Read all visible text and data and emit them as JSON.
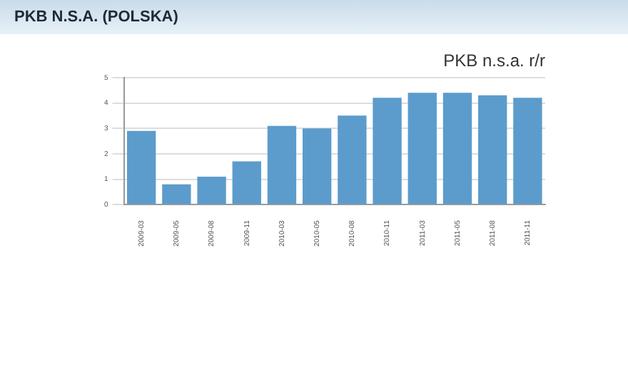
{
  "chart_data": {
    "type": "bar",
    "title": "PKB N.S.A. (POLSKA)",
    "subtitle": "PKB n.s.a. r/r",
    "categories": [
      "2009-03",
      "2009-05",
      "2009-08",
      "2009-11",
      "2010-03",
      "2010-05",
      "2010-08",
      "2010-11",
      "2011-03",
      "2011-05",
      "2011-08",
      "2011-11"
    ],
    "values": [
      2.9,
      0.8,
      1.1,
      1.7,
      3.1,
      3.0,
      3.5,
      4.2,
      4.4,
      4.4,
      4.3,
      4.2
    ],
    "color": "#5b9ccc",
    "ylim": [
      0,
      5
    ],
    "yticks": [
      0,
      1,
      2,
      3,
      4,
      5
    ],
    "grid": "y",
    "legend": false
  }
}
